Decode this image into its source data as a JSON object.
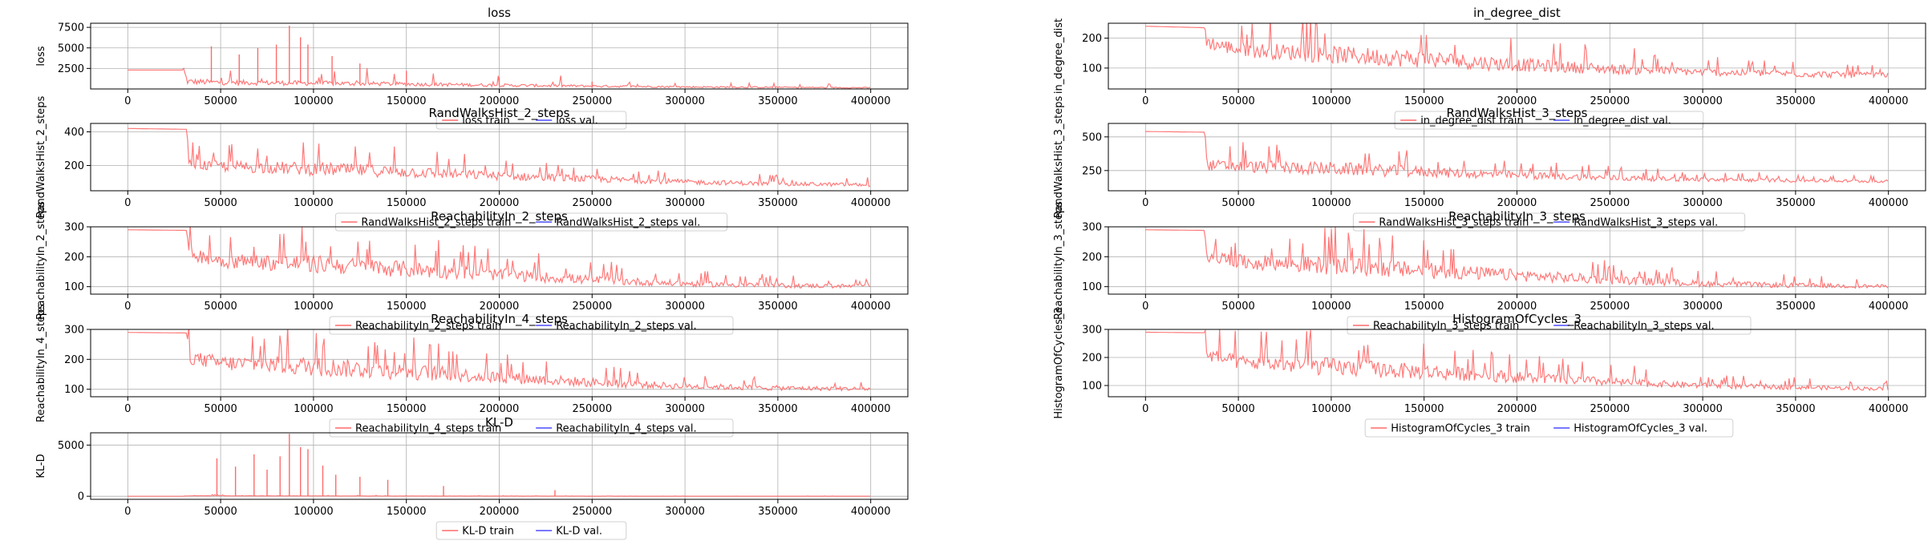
{
  "figure": {
    "colors": {
      "train": "#ff6b6b",
      "val": "#4c4cff",
      "grid": "#b0b0b0",
      "axis": "#000000"
    }
  },
  "chart_data": [
    {
      "type": "line",
      "title": "loss",
      "ylabel": "loss",
      "xlim": [
        -20000,
        420000
      ],
      "ylim": [
        0,
        8000
      ],
      "xticks": [
        0,
        50000,
        100000,
        150000,
        200000,
        250000,
        300000,
        350000,
        400000
      ],
      "yticks": [
        2500,
        5000,
        7500
      ],
      "grid": true,
      "legend": "bottom-center",
      "series": [
        {
          "name": "loss train",
          "color": "#ff6b6b",
          "x": [
            0,
            30000,
            32000,
            50000,
            100000,
            150000,
            200000,
            250000,
            300000,
            350000,
            400000
          ],
          "y": [
            2300,
            2300,
            900,
            800,
            700,
            600,
            450,
            350,
            250,
            200,
            150
          ],
          "spikes": [
            [
              45000,
              5200
            ],
            [
              60000,
              4200
            ],
            [
              70000,
              5000
            ],
            [
              80000,
              5400
            ],
            [
              87000,
              7700
            ],
            [
              93000,
              6300
            ],
            [
              97000,
              5400
            ],
            [
              110000,
              4000
            ],
            [
              125000,
              3100
            ],
            [
              150000,
              2200
            ],
            [
              200000,
              1400
            ],
            [
              250000,
              900
            ]
          ]
        },
        {
          "name": "loss val.",
          "color": "#4c4cff",
          "x": [],
          "y": []
        }
      ]
    },
    {
      "type": "line",
      "title": "in_degree_dist",
      "ylabel": "in_degree_dist",
      "xlim": [
        -20000,
        420000
      ],
      "ylim": [
        30,
        250
      ],
      "xticks": [
        0,
        50000,
        100000,
        150000,
        200000,
        250000,
        300000,
        350000,
        400000
      ],
      "yticks": [
        100,
        200
      ],
      "grid": true,
      "legend": "bottom-center",
      "series": [
        {
          "name": "in_degree_dist train",
          "color": "#ff6b6b",
          "x": [
            0,
            32000,
            33000,
            50000,
            100000,
            150000,
            200000,
            250000,
            300000,
            350000,
            400000
          ],
          "y": [
            240,
            235,
            175,
            150,
            130,
            115,
            100,
            88,
            80,
            75,
            70
          ],
          "band": [
            [
              33000,
              45
            ],
            [
              100000,
              60
            ],
            [
              150000,
              60
            ],
            [
              200000,
              45
            ],
            [
              300000,
              25
            ],
            [
              400000,
              20
            ]
          ]
        },
        {
          "name": "in_degree_dist val.",
          "color": "#4c4cff",
          "x": [],
          "y": []
        }
      ]
    },
    {
      "type": "line",
      "title": "RandWalksHist_2_steps",
      "ylabel": "RandWalksHist_2_steps",
      "xlim": [
        -20000,
        420000
      ],
      "ylim": [
        50,
        450
      ],
      "xticks": [
        0,
        50000,
        100000,
        150000,
        200000,
        250000,
        300000,
        350000,
        400000
      ],
      "yticks": [
        200,
        400
      ],
      "grid": true,
      "legend": "bottom-center",
      "series": [
        {
          "name": "RandWalksHist_2_steps train",
          "color": "#ff6b6b",
          "x": [
            0,
            32000,
            33000,
            50000,
            100000,
            150000,
            200000,
            250000,
            300000,
            350000,
            400000
          ],
          "y": [
            420,
            415,
            190,
            180,
            160,
            145,
            125,
            110,
            95,
            85,
            80
          ],
          "band": [
            [
              33000,
              60
            ],
            [
              100000,
              80
            ],
            [
              150000,
              70
            ],
            [
              200000,
              50
            ],
            [
              300000,
              30
            ],
            [
              400000,
              20
            ]
          ]
        },
        {
          "name": "RandWalksHist_2_steps val.",
          "color": "#4c4cff",
          "x": [],
          "y": []
        }
      ]
    },
    {
      "type": "line",
      "title": "RandWalksHist_3_steps",
      "ylabel": "RandWalksHist_3_steps",
      "xlim": [
        -20000,
        420000
      ],
      "ylim": [
        100,
        600
      ],
      "xticks": [
        0,
        50000,
        100000,
        150000,
        200000,
        250000,
        300000,
        350000,
        400000
      ],
      "yticks": [
        250,
        500
      ],
      "grid": true,
      "legend": "bottom-center",
      "series": [
        {
          "name": "RandWalksHist_3_steps train",
          "color": "#ff6b6b",
          "x": [
            0,
            32000,
            33000,
            50000,
            100000,
            150000,
            200000,
            250000,
            300000,
            350000,
            400000
          ],
          "y": [
            540,
            535,
            270,
            260,
            240,
            220,
            200,
            185,
            175,
            170,
            165
          ],
          "band": [
            [
              33000,
              80
            ],
            [
              100000,
              100
            ],
            [
              150000,
              80
            ],
            [
              200000,
              55
            ],
            [
              300000,
              30
            ],
            [
              400000,
              20
            ]
          ]
        },
        {
          "name": "RandWalksHist_3_steps val.",
          "color": "#4c4cff",
          "x": [],
          "y": []
        }
      ]
    },
    {
      "type": "line",
      "title": "ReachabilityIn_2_steps",
      "ylabel": "ReachabilityIn_2_steps",
      "xlim": [
        -20000,
        420000
      ],
      "ylim": [
        75,
        300
      ],
      "xticks": [
        0,
        50000,
        100000,
        150000,
        200000,
        250000,
        300000,
        350000,
        400000
      ],
      "yticks": [
        100,
        200,
        300
      ],
      "grid": true,
      "legend": "bottom-center",
      "series": [
        {
          "name": "ReachabilityIn_2_steps train",
          "color": "#ff6b6b",
          "x": [
            0,
            32000,
            33000,
            50000,
            100000,
            150000,
            200000,
            250000,
            300000,
            350000,
            400000
          ],
          "y": [
            290,
            288,
            200,
            175,
            160,
            145,
            130,
            115,
            105,
            100,
            98
          ],
          "band": [
            [
              33000,
              45
            ],
            [
              100000,
              60
            ],
            [
              150000,
              55
            ],
            [
              200000,
              40
            ],
            [
              300000,
              20
            ],
            [
              400000,
              12
            ]
          ]
        },
        {
          "name": "ReachabilityIn_2_steps val.",
          "color": "#4c4cff",
          "x": [],
          "y": []
        }
      ]
    },
    {
      "type": "line",
      "title": "ReachabilityIn_3_steps",
      "ylabel": "ReachabilityIn_3_steps",
      "xlim": [
        -20000,
        420000
      ],
      "ylim": [
        75,
        300
      ],
      "xticks": [
        0,
        50000,
        100000,
        150000,
        200000,
        250000,
        300000,
        350000,
        400000
      ],
      "yticks": [
        100,
        200,
        300
      ],
      "grid": true,
      "legend": "bottom-center",
      "series": [
        {
          "name": "ReachabilityIn_3_steps train",
          "color": "#ff6b6b",
          "x": [
            0,
            32000,
            33000,
            50000,
            100000,
            150000,
            200000,
            250000,
            300000,
            350000,
            400000
          ],
          "y": [
            290,
            288,
            195,
            170,
            155,
            140,
            128,
            115,
            105,
            100,
            98
          ],
          "band": [
            [
              33000,
              45
            ],
            [
              100000,
              60
            ],
            [
              150000,
              55
            ],
            [
              200000,
              40
            ],
            [
              300000,
              20
            ],
            [
              400000,
              12
            ]
          ]
        },
        {
          "name": "ReachabilityIn_3_steps val.",
          "color": "#4c4cff",
          "x": [],
          "y": []
        }
      ]
    },
    {
      "type": "line",
      "title": "ReachabilityIn_4_steps",
      "ylabel": "ReachabilityIn_4_steps",
      "xlim": [
        -20000,
        420000
      ],
      "ylim": [
        75,
        300
      ],
      "xticks": [
        0,
        50000,
        100000,
        150000,
        200000,
        250000,
        300000,
        350000,
        400000
      ],
      "yticks": [
        100,
        200,
        300
      ],
      "grid": true,
      "legend": "bottom-center",
      "series": [
        {
          "name": "ReachabilityIn_4_steps train",
          "color": "#ff6b6b",
          "x": [
            0,
            32000,
            33000,
            50000,
            100000,
            150000,
            200000,
            250000,
            300000,
            350000,
            400000
          ],
          "y": [
            290,
            288,
            195,
            175,
            160,
            145,
            130,
            115,
            105,
            100,
            98
          ],
          "band": [
            [
              33000,
              45
            ],
            [
              100000,
              65
            ],
            [
              150000,
              55
            ],
            [
              200000,
              40
            ],
            [
              300000,
              20
            ],
            [
              400000,
              12
            ]
          ]
        },
        {
          "name": "ReachabilityIn_4_steps val.",
          "color": "#4c4cff",
          "x": [],
          "y": []
        }
      ]
    },
    {
      "type": "line",
      "title": "HistogramOfCycles_3",
      "ylabel": "HistogramOfCycles_3",
      "xlim": [
        -20000,
        420000
      ],
      "ylim": [
        60,
        300
      ],
      "xticks": [
        0,
        50000,
        100000,
        150000,
        200000,
        250000,
        300000,
        350000,
        400000
      ],
      "yticks": [
        100,
        200,
        300
      ],
      "grid": true,
      "legend": "bottom-center",
      "series": [
        {
          "name": "HistogramOfCycles_3 train",
          "color": "#ff6b6b",
          "x": [
            0,
            32000,
            33000,
            50000,
            100000,
            150000,
            200000,
            250000,
            300000,
            350000,
            400000
          ],
          "y": [
            290,
            288,
            200,
            170,
            150,
            135,
            120,
            105,
            95,
            90,
            85
          ],
          "band": [
            [
              33000,
              45
            ],
            [
              100000,
              65
            ],
            [
              150000,
              55
            ],
            [
              200000,
              40
            ],
            [
              300000,
              20
            ],
            [
              400000,
              12
            ]
          ]
        },
        {
          "name": "HistogramOfCycles_3 val.",
          "color": "#4c4cff",
          "x": [],
          "y": []
        }
      ]
    },
    {
      "type": "line",
      "title": "KL-D",
      "ylabel": "KL-D",
      "xlim": [
        -20000,
        420000
      ],
      "ylim": [
        -300,
        6200
      ],
      "xticks": [
        0,
        50000,
        100000,
        150000,
        200000,
        250000,
        300000,
        350000,
        400000
      ],
      "yticks": [
        0,
        5000
      ],
      "grid": true,
      "legend": "bottom-center",
      "series": [
        {
          "name": "KL-D train",
          "color": "#ff6b6b",
          "x": [
            0,
            30000,
            32000,
            50000,
            100000,
            150000,
            200000,
            250000,
            300000,
            350000,
            400000
          ],
          "y": [
            0,
            0,
            50,
            40,
            30,
            20,
            15,
            10,
            5,
            5,
            5
          ],
          "spikes": [
            [
              48000,
              3700
            ],
            [
              58000,
              2900
            ],
            [
              68000,
              4100
            ],
            [
              75000,
              2600
            ],
            [
              82000,
              3900
            ],
            [
              87000,
              6100
            ],
            [
              93000,
              4800
            ],
            [
              97000,
              4600
            ],
            [
              105000,
              3000
            ],
            [
              112000,
              2100
            ],
            [
              125000,
              1900
            ],
            [
              140000,
              1600
            ],
            [
              170000,
              1000
            ],
            [
              230000,
              600
            ]
          ]
        },
        {
          "name": "KL-D val.",
          "color": "#4c4cff",
          "x": [],
          "y": []
        }
      ]
    }
  ]
}
